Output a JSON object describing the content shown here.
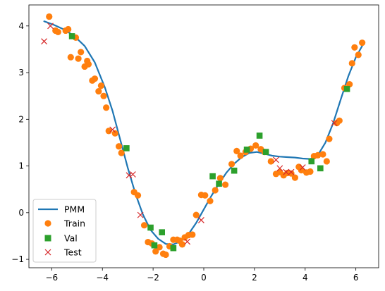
{
  "chart_data": {
    "type": "scatter",
    "title": "",
    "xlabel": "",
    "ylabel": "",
    "xlim": [
      -6.9,
      6.9
    ],
    "ylim": [
      -1.18,
      4.45
    ],
    "xticks": [
      -6,
      -4,
      -2,
      0,
      2,
      4,
      6
    ],
    "xtick_labels": [
      "−6",
      "−4",
      "−2",
      "0",
      "2",
      "4",
      "6"
    ],
    "yticks": [
      -1,
      0,
      1,
      2,
      3,
      4
    ],
    "ytick_labels": [
      "−1",
      "0",
      "1",
      "2",
      "3",
      "4"
    ],
    "grid": false,
    "legend_position": "lower-left",
    "series": [
      {
        "name": "PMM",
        "kind": "line",
        "color": "#1f77b4",
        "x": [
          -6.3,
          -5.9,
          -5.5,
          -5.1,
          -4.7,
          -4.3,
          -3.9,
          -3.6,
          -3.3,
          -3.0,
          -2.7,
          -2.4,
          -2.1,
          -1.8,
          -1.5,
          -1.2,
          -0.9,
          -0.6,
          -0.3,
          0.0,
          0.3,
          0.6,
          0.9,
          1.2,
          1.5,
          1.8,
          2.1,
          2.4,
          2.7,
          3.0,
          3.3,
          3.6,
          3.9,
          4.2,
          4.5,
          4.8,
          5.1,
          5.4,
          5.7,
          6.0,
          6.3
        ],
        "y": [
          4.1,
          4.02,
          3.92,
          3.78,
          3.57,
          3.22,
          2.68,
          2.18,
          1.57,
          0.96,
          0.41,
          -0.04,
          -0.37,
          -0.56,
          -0.67,
          -0.68,
          -0.61,
          -0.46,
          -0.22,
          0.07,
          0.36,
          0.62,
          0.86,
          1.05,
          1.19,
          1.28,
          1.3,
          1.26,
          1.22,
          1.2,
          1.19,
          1.18,
          1.16,
          1.15,
          1.23,
          1.5,
          1.91,
          2.42,
          2.92,
          3.33,
          3.62
        ]
      },
      {
        "name": "Train",
        "kind": "scatter",
        "marker": "circle",
        "color": "#ff7f0e",
        "x": [
          -6.1,
          -5.85,
          -5.75,
          -5.45,
          -5.35,
          -5.25,
          -5.05,
          -4.95,
          -4.85,
          -4.7,
          -4.6,
          -4.55,
          -4.4,
          -4.3,
          -4.15,
          -4.05,
          -3.95,
          -3.85,
          -3.75,
          -3.5,
          -3.35,
          -3.25,
          -2.75,
          -2.6,
          -2.35,
          -2.2,
          -2.05,
          -1.9,
          -1.75,
          -1.6,
          -1.5,
          -1.35,
          -1.2,
          -1.05,
          -0.95,
          -0.85,
          -0.75,
          -0.6,
          -0.45,
          -0.3,
          -0.1,
          0.05,
          0.25,
          0.45,
          0.65,
          0.85,
          1.1,
          1.3,
          1.45,
          1.65,
          1.85,
          2.05,
          2.25,
          2.4,
          2.65,
          2.85,
          3.0,
          3.15,
          3.3,
          3.45,
          3.6,
          3.75,
          3.85,
          4.05,
          4.2,
          4.35,
          4.5,
          4.7,
          4.85,
          4.95,
          5.25,
          5.35,
          5.55,
          5.75,
          5.85,
          5.95,
          6.1,
          6.25
        ],
        "y": [
          4.2,
          3.9,
          3.87,
          3.9,
          3.93,
          3.33,
          3.75,
          3.3,
          3.44,
          3.13,
          3.25,
          3.18,
          2.83,
          2.87,
          2.6,
          2.72,
          2.5,
          2.25,
          1.75,
          1.7,
          1.42,
          1.28,
          0.44,
          0.37,
          -0.27,
          -0.63,
          -0.66,
          -0.83,
          -0.74,
          -0.88,
          -0.9,
          -0.72,
          -0.58,
          -0.58,
          -0.6,
          -0.68,
          -0.53,
          -0.48,
          -0.47,
          -0.05,
          0.38,
          0.37,
          0.25,
          0.48,
          0.74,
          0.6,
          1.04,
          1.32,
          1.22,
          1.3,
          1.37,
          1.44,
          1.36,
          1.3,
          1.1,
          0.83,
          0.87,
          0.8,
          0.85,
          0.84,
          0.75,
          0.98,
          0.91,
          0.86,
          0.88,
          1.21,
          1.23,
          1.25,
          1.1,
          1.58,
          1.92,
          1.97,
          2.67,
          2.75,
          3.2,
          3.54,
          3.38,
          3.64
        ]
      },
      {
        "name": "Val",
        "kind": "scatter",
        "marker": "square",
        "color": "#2ca02c",
        "x": [
          -5.2,
          -3.05,
          -2.1,
          -1.95,
          -1.65,
          -1.2,
          0.35,
          0.6,
          1.2,
          1.7,
          2.2,
          2.45,
          4.25,
          4.6,
          5.65
        ],
        "y": [
          3.78,
          1.38,
          -0.32,
          -0.7,
          -0.42,
          -0.76,
          0.78,
          0.62,
          0.9,
          1.35,
          1.65,
          1.3,
          1.1,
          0.95,
          2.65
        ]
      },
      {
        "name": "Test",
        "kind": "scatter",
        "marker": "x",
        "color": "#d62728",
        "x": [
          -6.3,
          -6.05,
          -3.6,
          -2.95,
          -2.8,
          -2.5,
          -0.65,
          -0.1,
          2.85,
          3.0,
          3.25,
          3.45,
          3.9,
          5.15
        ],
        "y": [
          3.67,
          4.0,
          1.78,
          0.8,
          0.82,
          -0.05,
          -0.62,
          -0.16,
          1.13,
          0.95,
          0.87,
          0.87,
          0.97,
          1.92
        ]
      }
    ]
  }
}
